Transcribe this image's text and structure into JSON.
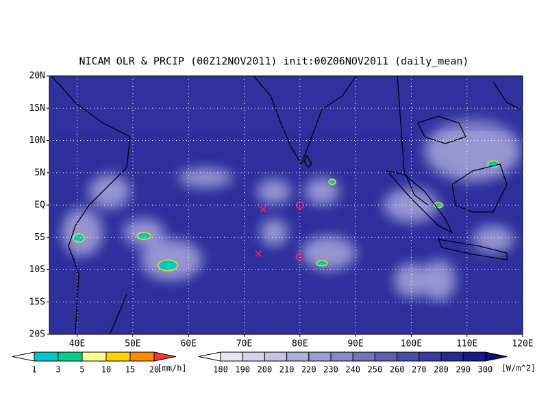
{
  "title": "NICAM OLR & PRCIP (00Z12NOV2011) init:00Z06NOV2011 (daily_mean)",
  "lat_labels": [
    "20N",
    "15N",
    "10N",
    "5N",
    "EQ",
    "5S",
    "10S",
    "15S",
    "20S"
  ],
  "lon_labels": [
    "40E",
    "50E",
    "60E",
    "70E",
    "80E",
    "90E",
    "100E",
    "110E",
    "120E"
  ],
  "precip_bar": {
    "labels": [
      1,
      3,
      5,
      10,
      15,
      20
    ],
    "unit": "[mm/h]",
    "colors": [
      "#ffffff",
      "#00c8c8",
      "#00d28c",
      "#ffff96",
      "#ffd200",
      "#ff8c00",
      "#ff3232"
    ]
  },
  "olr_bar": {
    "labels": [
      180,
      190,
      200,
      210,
      220,
      230,
      240,
      250,
      260,
      270,
      280,
      290,
      300
    ],
    "unit": "[W/m^2]",
    "colors": [
      "#ffffff",
      "#e6e6f5",
      "#d4d4ec",
      "#c3c3e3",
      "#b0b0da",
      "#9c9cd0",
      "#8888c6",
      "#7474bc",
      "#6060b2",
      "#4c4ca8",
      "#3a3a9e",
      "#282894",
      "#18188a",
      "#0c0c78"
    ]
  }
}
